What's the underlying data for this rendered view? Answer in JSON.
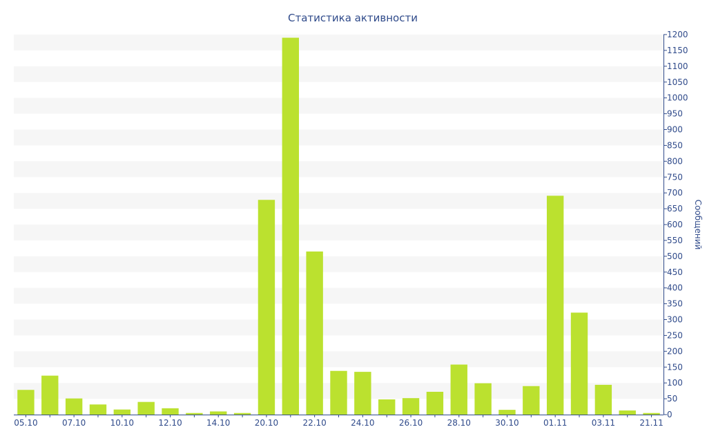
{
  "chart_data": {
    "type": "bar",
    "title": "Статистика активности",
    "ylabel": "Сообщений",
    "xlabel": "",
    "ylim": [
      0,
      1200
    ],
    "y_ticks": [
      0,
      50,
      100,
      150,
      200,
      250,
      300,
      350,
      400,
      450,
      500,
      550,
      600,
      650,
      700,
      750,
      800,
      850,
      900,
      950,
      1000,
      1050,
      1100,
      1150,
      1200
    ],
    "y_axis_position": "right",
    "grid": "horizontal bands",
    "legend": "none",
    "categories": [
      "05.10",
      "",
      "07.10",
      "",
      "10.10",
      "",
      "12.10",
      "",
      "14.10",
      "",
      "20.10",
      "",
      "22.10",
      "",
      "24.10",
      "",
      "26.10",
      "",
      "28.10",
      "",
      "30.10",
      "",
      "01.11",
      "",
      "03.11",
      "",
      "21.11"
    ],
    "values": [
      78,
      123,
      51,
      32,
      16,
      40,
      20,
      5,
      10,
      5,
      678,
      1190,
      515,
      138,
      135,
      48,
      52,
      72,
      158,
      99,
      15,
      90,
      691,
      322,
      94,
      13,
      5
    ],
    "bar_color": "#bbe12f",
    "text_color": "#2f4a8a",
    "band_color": "#f6f6f6"
  }
}
